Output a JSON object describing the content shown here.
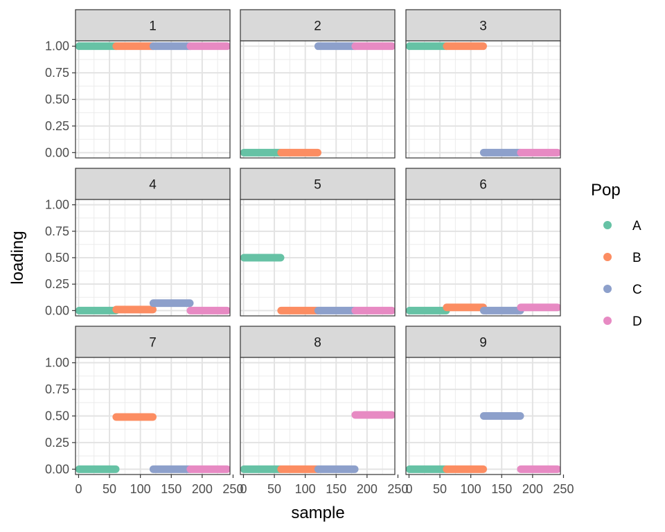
{
  "chart_data": {
    "type": "line",
    "facet_by": "panel",
    "xlabel": "sample",
    "ylabel": "loading",
    "xlim": [
      -5,
      245
    ],
    "ylim": [
      -0.05,
      1.05
    ],
    "x_ticks": [
      0,
      50,
      100,
      150,
      200,
      250
    ],
    "x_tick_labels": [
      "0",
      "50",
      "100",
      "150",
      "200",
      "250"
    ],
    "y_ticks": [
      0,
      0.25,
      0.5,
      0.75,
      1
    ],
    "y_tick_labels": [
      "0.00",
      "0.25",
      "0.50",
      "0.75",
      "1.00"
    ],
    "grid": true,
    "legend": {
      "title": "Pop",
      "position": "right",
      "entries": [
        {
          "name": "A",
          "color": "#66C2A5"
        },
        {
          "name": "B",
          "color": "#FC8D62"
        },
        {
          "name": "C",
          "color": "#8DA0CB"
        },
        {
          "name": "D",
          "color": "#E78AC3"
        }
      ]
    },
    "population_ranges": {
      "A": [
        1,
        60
      ],
      "B": [
        61,
        120
      ],
      "C": [
        121,
        180
      ],
      "D": [
        181,
        240
      ]
    },
    "panels": [
      {
        "label": "1",
        "values": {
          "A": 1.0,
          "B": 1.0,
          "C": 1.0,
          "D": 1.0
        }
      },
      {
        "label": "2",
        "values": {
          "A": 0.0,
          "B": 0.0,
          "C": 1.0,
          "D": 1.0
        }
      },
      {
        "label": "3",
        "values": {
          "A": 1.0,
          "B": 1.0,
          "C": 0.0,
          "D": 0.0
        }
      },
      {
        "label": "4",
        "values": {
          "A": 0.0,
          "B": 0.01,
          "C": 0.07,
          "D": 0.0
        }
      },
      {
        "label": "5",
        "values": {
          "A": 0.5,
          "B": 0.0,
          "C": 0.0,
          "D": 0.0
        }
      },
      {
        "label": "6",
        "values": {
          "A": 0.0,
          "B": 0.03,
          "C": 0.0,
          "D": 0.03
        }
      },
      {
        "label": "7",
        "values": {
          "A": 0.0,
          "B": 0.49,
          "C": 0.0,
          "D": 0.0
        }
      },
      {
        "label": "8",
        "values": {
          "A": 0.0,
          "B": 0.0,
          "C": 0.0,
          "D": 0.51
        }
      },
      {
        "label": "9",
        "values": {
          "A": 0.0,
          "B": 0.0,
          "C": 0.5,
          "D": 0.0
        }
      }
    ]
  }
}
